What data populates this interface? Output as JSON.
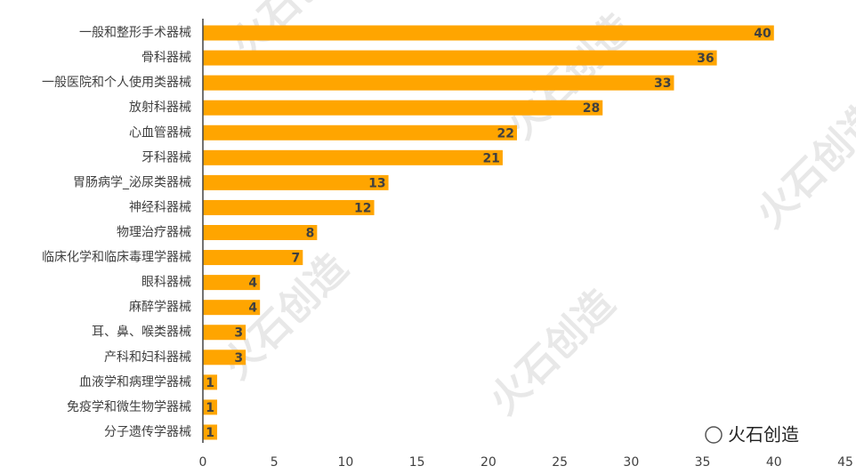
{
  "chart_data": {
    "type": "bar",
    "orientation": "horizontal",
    "categories": [
      "一般和整形手术器械",
      "骨科器械",
      "一般医院和个人使用类器械",
      "放射科器械",
      "心血管器械",
      "牙科器械",
      "胃肠病学_泌尿类器械",
      "神经科器械",
      "物理治疗器械",
      "临床化学和临床毒理学器械",
      "眼科器械",
      "麻醉学器械",
      "耳、鼻、喉类器械",
      "产科和妇科器械",
      "血液学和病理学器械",
      "免疫学和微生物学器械",
      "分子遗传学器械"
    ],
    "values": [
      40,
      36,
      33,
      28,
      22,
      21,
      13,
      12,
      8,
      7,
      4,
      4,
      3,
      3,
      1,
      1,
      1
    ],
    "color": "#ffa500",
    "xlim": [
      0,
      45
    ],
    "xticks": [
      0,
      5,
      10,
      15,
      20,
      25,
      30,
      35,
      40,
      45
    ],
    "grid": false,
    "watermark": "火石创造"
  }
}
